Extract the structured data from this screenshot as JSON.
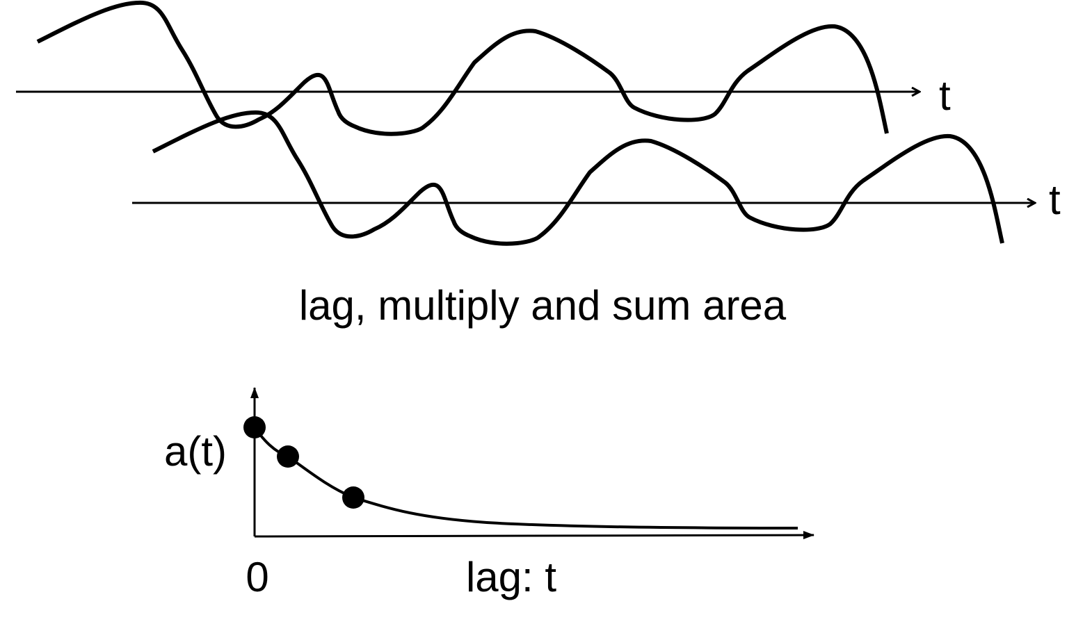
{
  "top_axis_label": "t",
  "lower_axis_label": "t",
  "caption": "lag, multiply and sum area",
  "autocorr": {
    "y_label": "a(t)",
    "x_origin_label": "0",
    "x_label": "lag: t",
    "points_shown": 3
  },
  "colors": {
    "ink": "#000000",
    "background": "#ffffff"
  }
}
